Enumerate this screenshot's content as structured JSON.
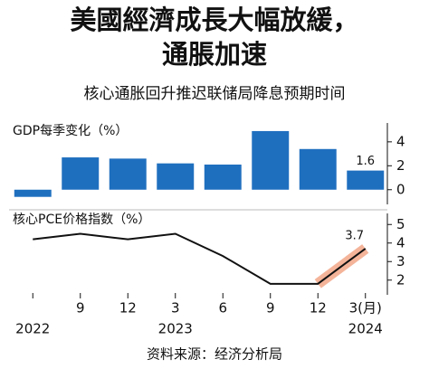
{
  "title": [
    "美國經濟成長大幅放緩，",
    "通脹加速"
  ],
  "subtitle": "核心通胀回升推迟联储局降息预期时间",
  "source": "资料来源：经济分析局",
  "chart_data": [
    {
      "type": "bar",
      "title": "GDP每季变化（%）",
      "color": "#1f6fbf",
      "categories": [
        null,
        "9",
        "12",
        "3",
        "6",
        "9",
        "12",
        "3(月)"
      ],
      "year_labels": [
        "2022",
        null,
        null,
        "2023",
        null,
        null,
        null,
        "2024"
      ],
      "values": [
        -0.6,
        2.7,
        2.6,
        2.2,
        2.1,
        4.9,
        3.4,
        1.6
      ],
      "value_labels": [
        null,
        null,
        null,
        null,
        null,
        null,
        null,
        "1.6"
      ],
      "ylim": [
        -1,
        5.5
      ],
      "yticks": [
        0,
        2,
        4
      ]
    },
    {
      "type": "line",
      "title": "核心PCE价格指数（%）",
      "color": "#111111",
      "highlight_color": "#f4b49a",
      "categories": [
        null,
        "9",
        "12",
        "3",
        "6",
        "9",
        "12",
        "3(月)"
      ],
      "values": [
        4.2,
        4.5,
        4.2,
        4.5,
        3.3,
        1.8,
        1.8,
        3.7
      ],
      "value_labels": [
        null,
        null,
        null,
        null,
        null,
        null,
        null,
        "3.7"
      ],
      "ylim": [
        1.5,
        5.5
      ],
      "yticks": [
        2,
        3,
        4,
        5
      ]
    }
  ]
}
